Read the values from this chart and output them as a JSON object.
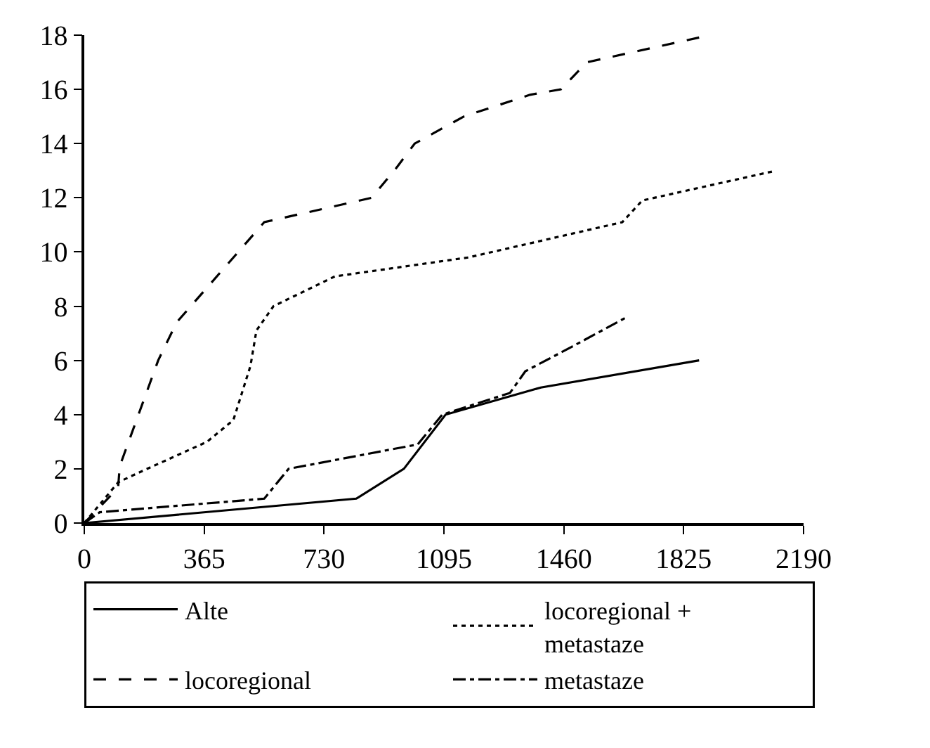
{
  "chart_data": {
    "type": "line",
    "xlim": [
      0,
      2190
    ],
    "xticks": [
      0,
      365,
      730,
      1095,
      1460,
      1825,
      2190
    ],
    "ylim": [
      0,
      18
    ],
    "yticks": [
      0,
      2,
      4,
      6,
      8,
      10,
      12,
      14,
      16,
      18
    ],
    "legend": "bottom",
    "marker": "none",
    "series": [
      {
        "name": "Alte",
        "color": "#000000",
        "line_style": "solid",
        "x": [
          0,
          828,
          973,
          1100,
          1390,
          1872
        ],
        "values": [
          0,
          0.9,
          2.0,
          4.0,
          5.0,
          6.0
        ]
      },
      {
        "name": "locoregional + metastaze",
        "color": "#000000",
        "line_style": "dotted",
        "x": [
          0,
          103,
          155,
          374,
          454,
          506,
          524,
          576,
          763,
          1170,
          1278,
          1638,
          1699,
          2106
        ],
        "values": [
          0,
          1.5,
          1.8,
          3.0,
          3.8,
          5.8,
          7.1,
          8.0,
          9.1,
          9.8,
          10.1,
          11.1,
          11.9,
          13.0
        ]
      },
      {
        "name": "locoregional",
        "color": "#000000",
        "line_style": "dashed",
        "x": [
          0,
          103,
          108,
          225,
          281,
          548,
          875,
          950,
          1006,
          1156,
          1357,
          1451,
          1530,
          1905
        ],
        "values": [
          0,
          1.3,
          2.1,
          6.0,
          7.4,
          11.1,
          12.0,
          13.1,
          14.0,
          15.0,
          15.8,
          16.0,
          17.0,
          18.0
        ]
      },
      {
        "name": "metastaze",
        "color": "#000000",
        "line_style": "dashdot",
        "x": [
          0,
          47,
          548,
          622,
          1015,
          1090,
          1296,
          1343,
          1484,
          1652
        ],
        "values": [
          0,
          0.4,
          0.9,
          2.0,
          2.9,
          4.0,
          4.8,
          5.6,
          6.5,
          7.6
        ]
      }
    ]
  }
}
